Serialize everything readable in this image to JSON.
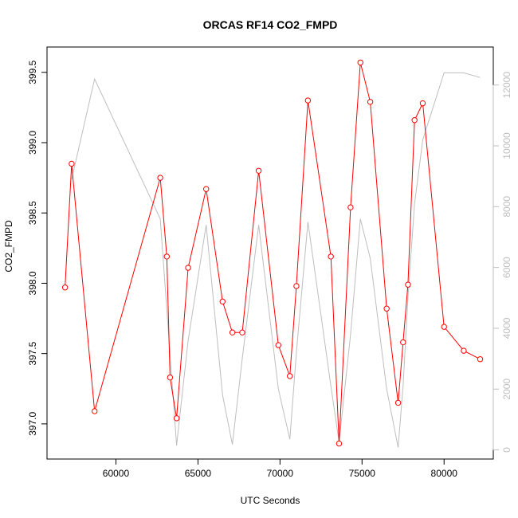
{
  "chart_data": {
    "type": "line",
    "title": "ORCAS RF14 CO2_FMPD",
    "xlabel": "UTC Seconds",
    "ylabel": "CO2_FMPD",
    "xlim": [
      55800,
      83000
    ],
    "ylim": [
      396.75,
      399.68
    ],
    "y2lim": [
      -300,
      13250
    ],
    "x_ticks": [
      60000,
      65000,
      70000,
      75000,
      80000
    ],
    "y_ticks": [
      397.0,
      397.5,
      398.0,
      398.5,
      399.0,
      399.5
    ],
    "y2_ticks": [
      0,
      2000,
      4000,
      6000,
      8000,
      10000,
      12000
    ],
    "grid": false,
    "series": [
      {
        "color": "#ff0000",
        "axis": "left",
        "markers": "open-circle",
        "x": [
          56900,
          57300,
          58700,
          62700,
          63100,
          63300,
          63700,
          64400,
          65500,
          66500,
          67100,
          67700,
          68700,
          69900,
          70600,
          71000,
          71700,
          73100,
          73600,
          74300,
          74900,
          75500,
          76500,
          77200,
          77500,
          77800,
          78200,
          78700,
          80000,
          81200,
          82200
        ],
        "values": [
          397.97,
          398.85,
          397.09,
          398.75,
          398.19,
          397.33,
          397.04,
          398.11,
          398.67,
          397.87,
          397.65,
          397.65,
          398.8,
          397.56,
          397.34,
          397.98,
          399.3,
          398.19,
          396.86,
          398.54,
          399.57,
          399.29,
          397.82,
          397.15,
          397.58,
          397.99,
          399.16,
          399.28,
          397.69,
          397.52,
          397.46
        ]
      },
      {
        "color": "#bebebe",
        "axis": "right",
        "markers": "none",
        "x": [
          57300,
          58700,
          62700,
          63700,
          64400,
          65500,
          66500,
          67100,
          67700,
          68700,
          69900,
          70600,
          71000,
          71700,
          73100,
          73600,
          74300,
          74900,
          75500,
          76500,
          77200,
          77500,
          77800,
          78200,
          78700,
          80000,
          81200,
          82200
        ],
        "values": [
          8900,
          12200,
          7600,
          150,
          3600,
          7400,
          1800,
          180,
          3000,
          7400,
          2000,
          350,
          3200,
          7500,
          2100,
          250,
          3800,
          7600,
          6300,
          2000,
          80,
          2100,
          5000,
          8100,
          10200,
          12400,
          12400,
          12250
        ]
      }
    ]
  }
}
